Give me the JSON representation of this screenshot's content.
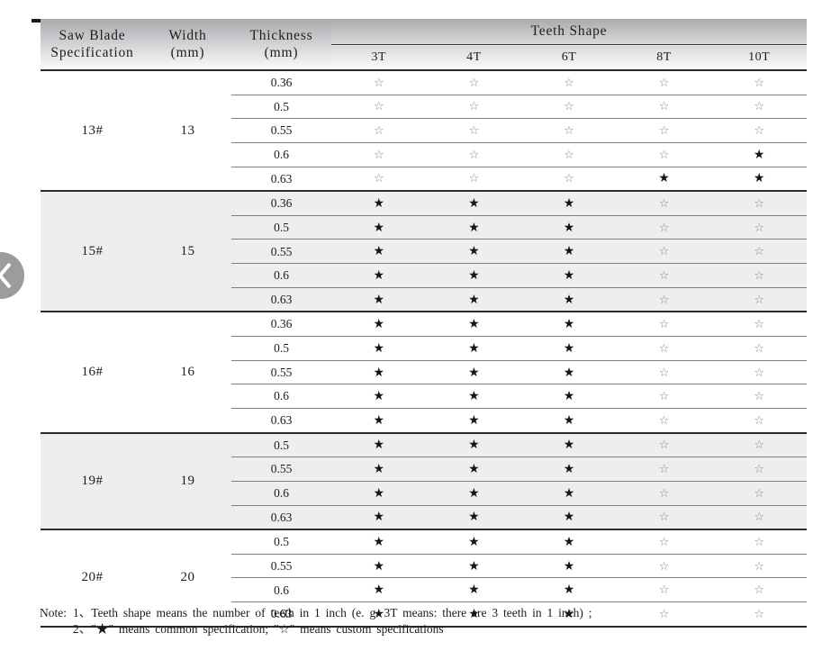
{
  "table": {
    "header": {
      "spec_line1": "Saw Blade",
      "spec_line2": "Specification",
      "width_line1": "Width",
      "width_line2": "(mm)",
      "thickness_line1": "Thickness",
      "thickness_line2": "(mm)",
      "teeth_shape": "Teeth Shape",
      "teeth_columns": [
        "3T",
        "4T",
        "6T",
        "8T",
        "10T"
      ]
    },
    "symbols": {
      "common": "★",
      "custom": "☆"
    },
    "groups": [
      {
        "spec": "13#",
        "width": "13",
        "shaded": false,
        "rows": [
          {
            "thickness": "0.36",
            "marks": [
              "☆",
              "☆",
              "☆",
              "☆",
              "☆"
            ]
          },
          {
            "thickness": "0.5",
            "marks": [
              "☆",
              "☆",
              "☆",
              "☆",
              "☆"
            ]
          },
          {
            "thickness": "0.55",
            "marks": [
              "☆",
              "☆",
              "☆",
              "☆",
              "☆"
            ]
          },
          {
            "thickness": "0.6",
            "marks": [
              "☆",
              "☆",
              "☆",
              "☆",
              "★"
            ]
          },
          {
            "thickness": "0.63",
            "marks": [
              "☆",
              "☆",
              "☆",
              "★",
              "★"
            ]
          }
        ]
      },
      {
        "spec": "15#",
        "width": "15",
        "shaded": true,
        "rows": [
          {
            "thickness": "0.36",
            "marks": [
              "★",
              "★",
              "★",
              "☆",
              "☆"
            ]
          },
          {
            "thickness": "0.5",
            "marks": [
              "★",
              "★",
              "★",
              "☆",
              "☆"
            ]
          },
          {
            "thickness": "0.55",
            "marks": [
              "★",
              "★",
              "★",
              "☆",
              "☆"
            ]
          },
          {
            "thickness": "0.6",
            "marks": [
              "★",
              "★",
              "★",
              "☆",
              "☆"
            ]
          },
          {
            "thickness": "0.63",
            "marks": [
              "★",
              "★",
              "★",
              "☆",
              "☆"
            ]
          }
        ]
      },
      {
        "spec": "16#",
        "width": "16",
        "shaded": false,
        "rows": [
          {
            "thickness": "0.36",
            "marks": [
              "★",
              "★",
              "★",
              "☆",
              "☆"
            ]
          },
          {
            "thickness": "0.5",
            "marks": [
              "★",
              "★",
              "★",
              "☆",
              "☆"
            ]
          },
          {
            "thickness": "0.55",
            "marks": [
              "★",
              "★",
              "★",
              "☆",
              "☆"
            ]
          },
          {
            "thickness": "0.6",
            "marks": [
              "★",
              "★",
              "★",
              "☆",
              "☆"
            ]
          },
          {
            "thickness": "0.63",
            "marks": [
              "★",
              "★",
              "★",
              "☆",
              "☆"
            ]
          }
        ]
      },
      {
        "spec": "19#",
        "width": "19",
        "shaded": true,
        "rows": [
          {
            "thickness": "0.5",
            "marks": [
              "★",
              "★",
              "★",
              "☆",
              "☆"
            ]
          },
          {
            "thickness": "0.55",
            "marks": [
              "★",
              "★",
              "★",
              "☆",
              "☆"
            ]
          },
          {
            "thickness": "0.6",
            "marks": [
              "★",
              "★",
              "★",
              "☆",
              "☆"
            ]
          },
          {
            "thickness": "0.63",
            "marks": [
              "★",
              "★",
              "★",
              "☆",
              "☆"
            ]
          }
        ]
      },
      {
        "spec": "20#",
        "width": "20",
        "shaded": false,
        "rows": [
          {
            "thickness": "0.5",
            "marks": [
              "★",
              "★",
              "★",
              "☆",
              "☆"
            ]
          },
          {
            "thickness": "0.55",
            "marks": [
              "★",
              "★",
              "★",
              "☆",
              "☆"
            ]
          },
          {
            "thickness": "0.6",
            "marks": [
              "★",
              "★",
              "★",
              "☆",
              "☆"
            ]
          },
          {
            "thickness": "0.63",
            "marks": [
              "★",
              "★",
              "★",
              "☆",
              "☆"
            ]
          }
        ]
      }
    ]
  },
  "note": {
    "label": "Note:",
    "line1": "1、Teeth shape means the number of teeth in 1 inch (e. g. 3T  means: there are 3 teeth in 1 inch) ;",
    "line2": "2、″★″ means common specification;  ″☆″ means custom specifications"
  },
  "colors": {
    "header_top": "#a8aaad",
    "header_mid": "#d9dadc",
    "header_bottom": "#fbfbfc",
    "line_dark": "#2b2b2b",
    "line_gray": "#7f7f7f",
    "shade": "#eeeeef",
    "star_filled": "#151515",
    "star_outline": "#8a8a8a",
    "circle_gray": "#9c9c9c",
    "text": "#1c1c1c"
  }
}
